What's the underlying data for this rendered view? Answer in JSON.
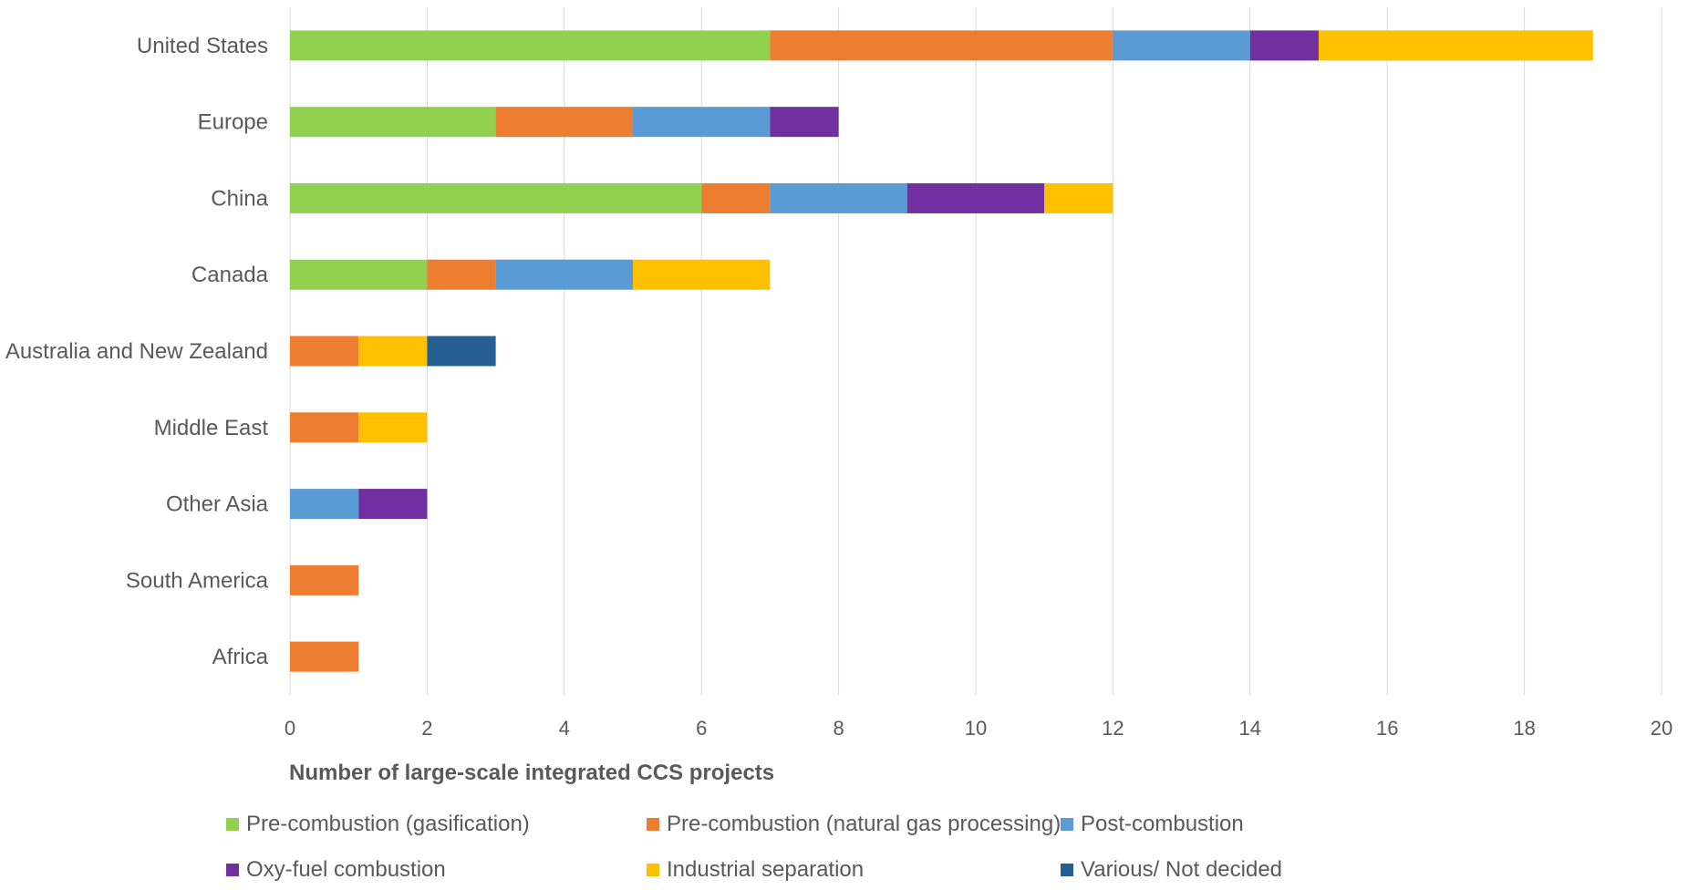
{
  "chart_data": {
    "type": "bar",
    "orientation": "horizontal",
    "stacked": true,
    "categories": [
      "United States",
      "Europe",
      "China",
      "Canada",
      "Australia and New Zealand",
      "Middle East",
      "Other Asia",
      "South America",
      "Africa"
    ],
    "series": [
      {
        "name": "Pre-combustion (gasification)",
        "color": "#92D050",
        "values": [
          7,
          3,
          6,
          2,
          0,
          0,
          0,
          0,
          0
        ]
      },
      {
        "name": "Pre-combustion (natural gas processing)",
        "color": "#ED7D31",
        "values": [
          5,
          2,
          1,
          1,
          1,
          1,
          0,
          1,
          1
        ]
      },
      {
        "name": "Post-combustion",
        "color": "#5B9BD5",
        "values": [
          2,
          2,
          2,
          2,
          0,
          0,
          1,
          0,
          0
        ]
      },
      {
        "name": "Oxy-fuel combustion",
        "color": "#7030A0",
        "values": [
          1,
          1,
          2,
          0,
          0,
          0,
          1,
          0,
          0
        ]
      },
      {
        "name": "Industrial separation",
        "color": "#FFC000",
        "values": [
          4,
          0,
          1,
          2,
          1,
          1,
          0,
          0,
          0
        ]
      },
      {
        "name": "Various/ Not decided",
        "color": "#255E91",
        "values": [
          0,
          0,
          0,
          0,
          1,
          0,
          0,
          0,
          0
        ]
      }
    ],
    "xlim": [
      0,
      20
    ],
    "xticks": [
      0,
      2,
      4,
      6,
      8,
      10,
      12,
      14,
      16,
      18,
      20
    ],
    "xlabel": "Number of large-scale integrated CCS projects",
    "ylabel": "",
    "title": "",
    "grid": "vertical",
    "legend_position": "bottom"
  }
}
